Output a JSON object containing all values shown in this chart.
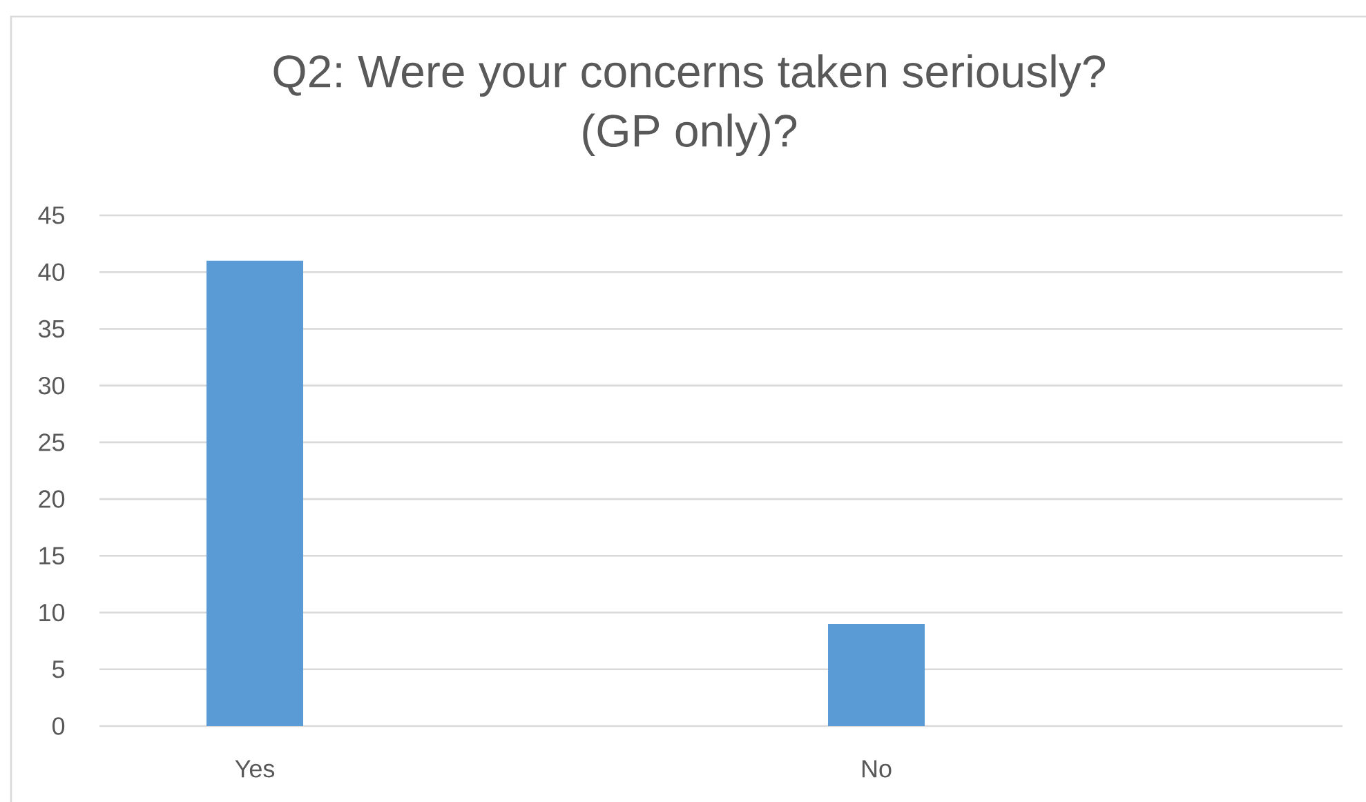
{
  "chart_data": {
    "type": "bar",
    "title": "Q2: Were your concerns taken seriously? (GP only)?",
    "categories": [
      "Yes",
      "No"
    ],
    "values": [
      41,
      9
    ],
    "color": "#5b9bd5",
    "ylim": [
      0,
      45
    ],
    "yticks": [
      0,
      5,
      10,
      15,
      20,
      25,
      30,
      35,
      40,
      45
    ],
    "grid": "y"
  }
}
